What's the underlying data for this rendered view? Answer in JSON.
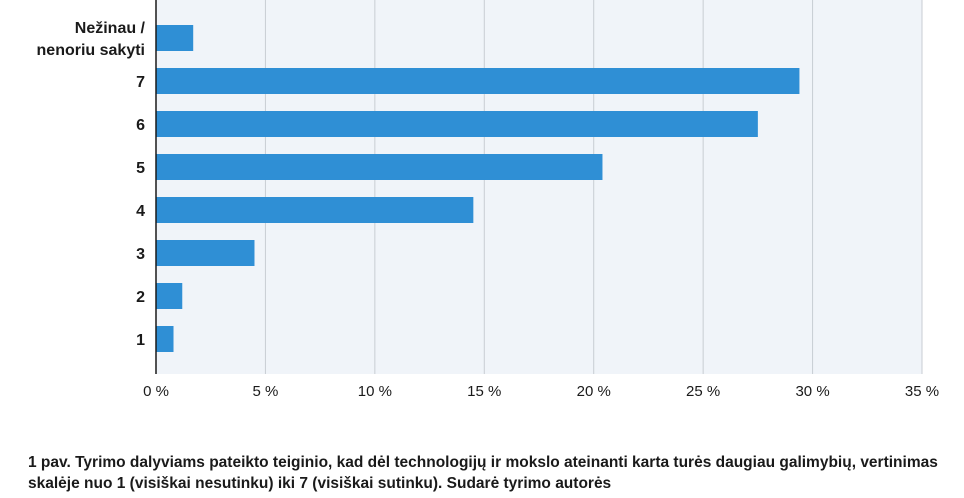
{
  "chart_data": {
    "type": "bar",
    "orientation": "horizontal",
    "categories": [
      [
        "Nežinau /",
        "nenoriu sakyti"
      ],
      [
        "7"
      ],
      [
        "6"
      ],
      [
        "5"
      ],
      [
        "4"
      ],
      [
        "3"
      ],
      [
        "2"
      ],
      [
        "1"
      ]
    ],
    "values": [
      1.7,
      29.4,
      27.5,
      20.4,
      14.5,
      4.5,
      1.2,
      0.8
    ],
    "xlim": [
      0,
      35
    ],
    "x_ticks": [
      0,
      5,
      10,
      15,
      20,
      25,
      30,
      35
    ],
    "x_tick_labels": [
      "0 %",
      "5 %",
      "10 %",
      "15 %",
      "20 %",
      "25 %",
      "30 %",
      "35 %"
    ],
    "grid": "vertical",
    "colors": {
      "bar": "#2f8fd5",
      "plot_bg": "#f0f4f9",
      "grid": "#c8cdd3",
      "axis": "#1a1a1a"
    }
  },
  "caption": "1 pav. Tyrimo dalyviams pateikto teiginio, kad dėl technologijų ir mokslo ateinanti karta turės daugiau galimybių, vertinimas skalėje nuo 1 (visiškai nesutinku) iki 7 (visiškai sutinku). Sudarė tyrimo autorės"
}
